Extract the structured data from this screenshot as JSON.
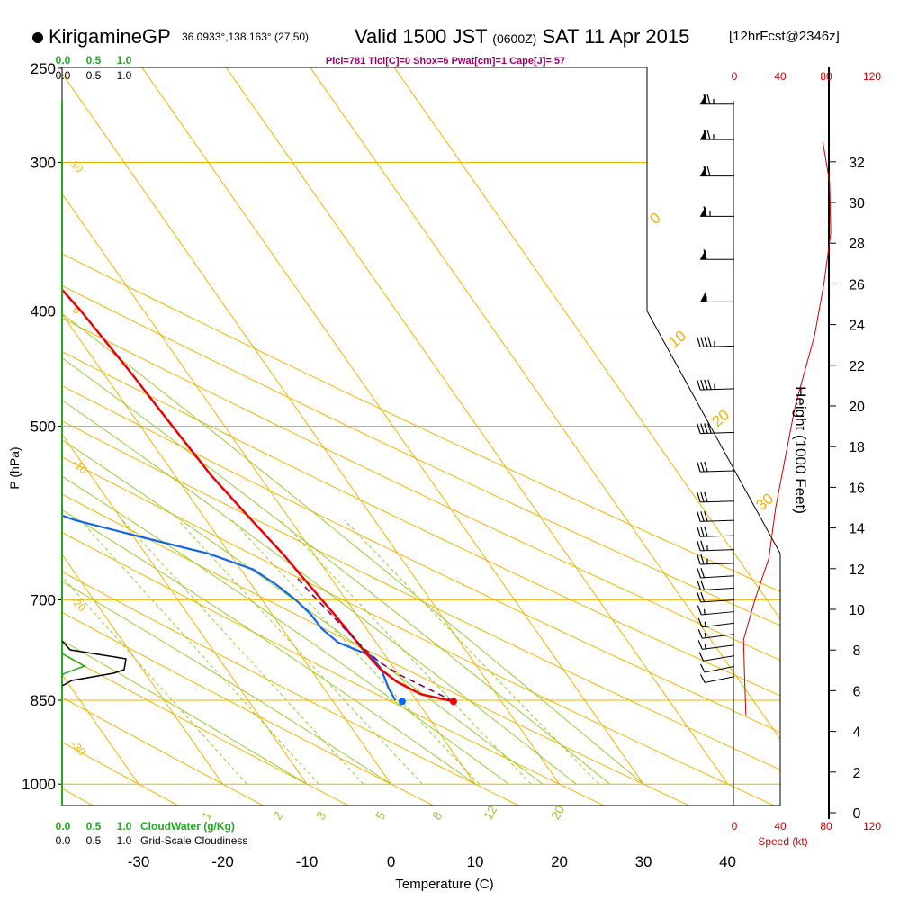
{
  "header": {
    "station": "KirigamineGP",
    "coords": "36.0933°,138.163° (27,50)",
    "valid": "Valid 1500 JST",
    "zulu": "(0600Z)",
    "date": "SAT 11 Apr 2015",
    "forecast": "[12hrFcst@2346z]"
  },
  "indices": "Plcl=781 Tlcl[C]=0 Shox=6 Pwat[cm]=1 Cape[J]= 57",
  "labels": {
    "pressure_axis": "P (hPa)",
    "temperature_axis": "Temperature (C)",
    "height_axis": "Height (1000 Feet)",
    "speed_axis": "Speed (kt)",
    "cloudwater": "CloudWater (g/Kg)",
    "cloudiness": "Grid-Scale Cloudiness"
  },
  "colors": {
    "temperature": "#ee0000",
    "dewpoint": "#1166ee",
    "parcel": "#770066",
    "isotherm": "#f0b400",
    "dry_adiabat": "#f0b400",
    "moist_adiabat": "#99cc33",
    "mixing_ratio": "#99cc33",
    "cloudwater": "#22aa22",
    "indices": "#990066",
    "speed": "#cc0000"
  },
  "chart_data": {
    "type": "skew-t",
    "pressure_ticks": [
      250,
      300,
      400,
      500,
      700,
      850,
      1000
    ],
    "temperature_ticks": [
      -30,
      -20,
      -10,
      0,
      10,
      20,
      30,
      40
    ],
    "height_ticks_kft": [
      0,
      2,
      4,
      6,
      8,
      10,
      12,
      14,
      16,
      18,
      20,
      22,
      24,
      26,
      28,
      30,
      32
    ],
    "speed_ticks_kt": [
      0,
      40,
      80,
      120
    ],
    "cloud_scale_top": {
      "cloudwater": [
        "0.0",
        "0.5",
        "1.0"
      ],
      "cloudiness": [
        "0.0",
        "0.5",
        "1.0"
      ]
    },
    "cloud_scale_bottom": {
      "cloudwater": [
        "0.0",
        "0.5",
        "1.0"
      ],
      "cloudiness": [
        "0.0",
        "0.5",
        "1.0"
      ]
    },
    "isotherm_labels": [
      "10",
      "0",
      "-10",
      "-20",
      "-30"
    ],
    "dry_adiabat_labels": [
      "0",
      "10",
      "20",
      "30"
    ],
    "mixing_ratio_labels": [
      "1",
      "2",
      "3",
      "5",
      "8",
      "12",
      "20"
    ],
    "temperature_profile": [
      {
        "p": 852,
        "t": 14.3
      },
      {
        "p": 840,
        "t": 11.0
      },
      {
        "p": 820,
        "t": 9.2
      },
      {
        "p": 800,
        "t": 8.3
      },
      {
        "p": 775,
        "t": 7.9
      },
      {
        "p": 750,
        "t": 7.7
      },
      {
        "p": 720,
        "t": 7.4
      },
      {
        "p": 700,
        "t": 7.1
      },
      {
        "p": 670,
        "t": 6.7
      },
      {
        "p": 640,
        "t": 6.3
      },
      {
        "p": 600,
        "t": 5.4
      },
      {
        "p": 550,
        "t": 4.3
      },
      {
        "p": 500,
        "t": 3.8
      },
      {
        "p": 450,
        "t": 3.3
      },
      {
        "p": 400,
        "t": 2.5
      },
      {
        "p": 370,
        "t": 1.6
      },
      {
        "p": 340,
        "t": 0.5
      },
      {
        "p": 300,
        "t": -1.0
      },
      {
        "p": 285,
        "t": -2.2
      },
      {
        "p": 270,
        "t": -3.3
      }
    ],
    "dewpoint_profile": [
      {
        "p": 850,
        "t": 7.5
      },
      {
        "p": 830,
        "t": 7.7
      },
      {
        "p": 800,
        "t": 8.4
      },
      {
        "p": 780,
        "t": 8.3
      },
      {
        "p": 760,
        "t": 5.5
      },
      {
        "p": 740,
        "t": 4.7
      },
      {
        "p": 720,
        "t": 4.6
      },
      {
        "p": 700,
        "t": 4.0
      },
      {
        "p": 680,
        "t": 3.0
      },
      {
        "p": 660,
        "t": 1.5
      },
      {
        "p": 640,
        "t": -2.5
      },
      {
        "p": 620,
        "t": -9.0
      },
      {
        "p": 600,
        "t": -15.5
      },
      {
        "p": 580,
        "t": -20.0
      },
      {
        "p": 550,
        "t": -26.0
      },
      {
        "p": 520,
        "t": -31.0
      },
      {
        "p": 500,
        "t": -35.5
      },
      {
        "p": 480,
        "t": -39.0
      },
      {
        "p": 470,
        "t": -41.5
      },
      {
        "p": 450,
        "t": -38.0
      },
      {
        "p": 400,
        "t": -30.5
      },
      {
        "p": 370,
        "t": -24.8
      },
      {
        "p": 340,
        "t": -19.5
      },
      {
        "p": 310,
        "t": -15.5
      },
      {
        "p": 290,
        "t": -13.5
      },
      {
        "p": 270,
        "t": -12.1
      }
    ],
    "parcel_profile": [
      {
        "p": 852,
        "t": 14.3
      },
      {
        "p": 830,
        "t": 12.2
      },
      {
        "p": 810,
        "t": 10.2
      },
      {
        "p": 790,
        "t": 8.8
      },
      {
        "p": 770,
        "t": 8.1
      },
      {
        "p": 740,
        "t": 7.4
      },
      {
        "p": 710,
        "t": 6.8
      },
      {
        "p": 690,
        "t": 6.3
      },
      {
        "p": 670,
        "t": 6.0
      }
    ],
    "surface_temperature": {
      "p": 852,
      "t": 14.3
    },
    "surface_dewpoint": {
      "p": 852,
      "t": 8.2
    },
    "wind_speed_profile": [
      {
        "h": 4.8,
        "s": 10
      },
      {
        "h": 6.5,
        "s": 9
      },
      {
        "h": 8.5,
        "s": 8
      },
      {
        "h": 10.5,
        "s": 18
      },
      {
        "h": 12.5,
        "s": 30
      },
      {
        "h": 15,
        "s": 36
      },
      {
        "h": 20,
        "s": 53
      },
      {
        "h": 23.5,
        "s": 70
      },
      {
        "h": 26,
        "s": 78
      },
      {
        "h": 28.5,
        "s": 84
      },
      {
        "h": 31,
        "s": 83
      },
      {
        "h": 33,
        "s": 77
      }
    ],
    "wind_barbs": [
      {
        "p": 268,
        "dir": 270,
        "spd": 75
      },
      {
        "p": 287,
        "dir": 270,
        "spd": 75
      },
      {
        "p": 308,
        "dir": 270,
        "spd": 70
      },
      {
        "p": 333,
        "dir": 270,
        "spd": 65
      },
      {
        "p": 362,
        "dir": 270,
        "spd": 60
      },
      {
        "p": 393,
        "dir": 270,
        "spd": 55
      },
      {
        "p": 428,
        "dir": 265,
        "spd": 45
      },
      {
        "p": 465,
        "dir": 265,
        "spd": 45
      },
      {
        "p": 506,
        "dir": 265,
        "spd": 40
      },
      {
        "p": 545,
        "dir": 265,
        "spd": 30
      },
      {
        "p": 578,
        "dir": 265,
        "spd": 30
      },
      {
        "p": 600,
        "dir": 265,
        "spd": 30
      },
      {
        "p": 618,
        "dir": 265,
        "spd": 30
      },
      {
        "p": 635,
        "dir": 265,
        "spd": 25
      },
      {
        "p": 652,
        "dir": 265,
        "spd": 25
      },
      {
        "p": 668,
        "dir": 260,
        "spd": 20
      },
      {
        "p": 684,
        "dir": 260,
        "spd": 20
      },
      {
        "p": 700,
        "dir": 260,
        "spd": 20
      },
      {
        "p": 716,
        "dir": 255,
        "spd": 15
      },
      {
        "p": 732,
        "dir": 250,
        "spd": 15
      },
      {
        "p": 748,
        "dir": 250,
        "spd": 15
      },
      {
        "p": 764,
        "dir": 250,
        "spd": 15
      },
      {
        "p": 780,
        "dir": 245,
        "spd": 10
      },
      {
        "p": 796,
        "dir": 240,
        "spd": 10
      },
      {
        "p": 812,
        "dir": 240,
        "spd": 10
      }
    ]
  }
}
